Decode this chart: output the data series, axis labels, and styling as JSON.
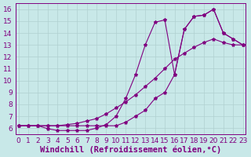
{
  "xlabel": "Windchill (Refroidissement éolien,°C)",
  "ylabel": "",
  "bg_color": "#c8e8e8",
  "line_color": "#800080",
  "xlim": [
    0,
    23
  ],
  "ylim": [
    5.5,
    16.5
  ],
  "xticks": [
    0,
    1,
    2,
    3,
    4,
    5,
    6,
    7,
    8,
    9,
    10,
    11,
    12,
    13,
    14,
    15,
    16,
    17,
    18,
    19,
    20,
    21,
    22,
    23
  ],
  "yticks": [
    6,
    7,
    8,
    9,
    10,
    11,
    12,
    13,
    14,
    15,
    16
  ],
  "line1_x": [
    0,
    1,
    2,
    3,
    4,
    5,
    6,
    7,
    8,
    9,
    10,
    11,
    12,
    13,
    14,
    15,
    16,
    17,
    18,
    19,
    20,
    21,
    22,
    23
  ],
  "line1_y": [
    6.2,
    6.2,
    6.2,
    6.2,
    6.2,
    6.2,
    6.2,
    6.2,
    6.2,
    6.2,
    6.2,
    6.5,
    7.0,
    7.5,
    8.5,
    9.0,
    10.5,
    14.3,
    15.4,
    15.5,
    16.0,
    14.0,
    13.5,
    13.0
  ],
  "line2_x": [
    0,
    1,
    2,
    3,
    4,
    5,
    6,
    7,
    8,
    9,
    10,
    11,
    12,
    13,
    14,
    15,
    16,
    17,
    18,
    19,
    20,
    21,
    22,
    23
  ],
  "line2_y": [
    6.2,
    6.2,
    6.2,
    5.95,
    5.8,
    5.8,
    5.8,
    5.8,
    6.0,
    6.3,
    7.0,
    8.5,
    10.5,
    13.0,
    14.9,
    15.1,
    10.5,
    14.3,
    15.4,
    15.5,
    16.0,
    14.0,
    13.5,
    13.0
  ],
  "line3_x": [
    0,
    1,
    2,
    3,
    4,
    5,
    6,
    7,
    8,
    9,
    10,
    11,
    12,
    13,
    14,
    15,
    16,
    17,
    18,
    19,
    20,
    21,
    22,
    23
  ],
  "line3_y": [
    6.2,
    6.2,
    6.2,
    6.2,
    6.2,
    6.3,
    6.4,
    6.6,
    6.8,
    7.2,
    7.7,
    8.2,
    8.8,
    9.5,
    10.2,
    11.0,
    11.8,
    12.3,
    12.8,
    13.2,
    13.5,
    13.2,
    13.0,
    13.0
  ],
  "grid_color": "#b0d0d0",
  "font_size_label": 7.5,
  "font_size_tick": 6.5
}
